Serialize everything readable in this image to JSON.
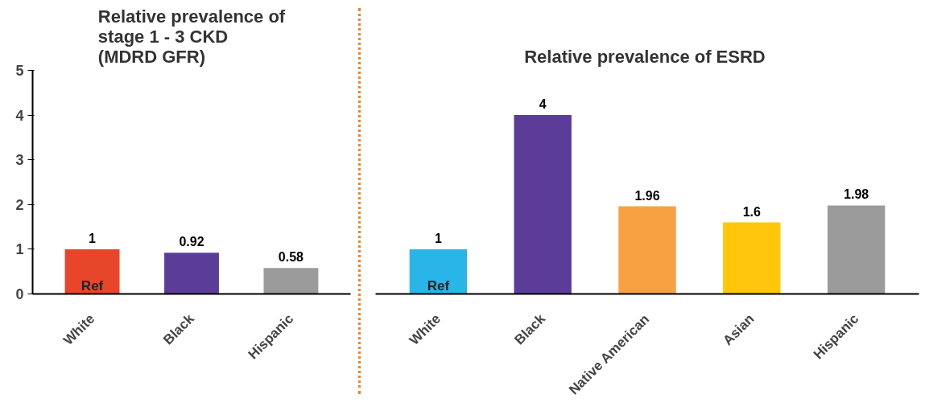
{
  "chart_data": [
    {
      "type": "bar",
      "title": "Relative prevalence of\nstage 1 - 3 CKD\n(MDRD GFR)",
      "categories": [
        "White",
        "Black",
        "Hispanic"
      ],
      "values": [
        1,
        0.92,
        0.58
      ],
      "colors": [
        "#e8462a",
        "#5b3d99",
        "#9b9b9b"
      ],
      "ylim": [
        0,
        5
      ],
      "yticks": [
        0,
        1,
        2,
        3,
        4,
        5
      ],
      "data_labels": true,
      "annotations": [
        {
          "text": "Ref",
          "x": "White",
          "y": 0
        }
      ]
    },
    {
      "type": "bar",
      "title": "Relative prevalence of  ESRD",
      "categories": [
        "White",
        "Black",
        "Native American",
        "Asian",
        "Hispanic"
      ],
      "values": [
        1,
        4,
        1.96,
        1.6,
        1.98
      ],
      "colors": [
        "#29b5e8",
        "#5b3d99",
        "#f7a143",
        "#ffc60b",
        "#9b9b9b"
      ],
      "ylim": [
        0,
        5
      ],
      "yticks": [
        0,
        1,
        2,
        3,
        4,
        5
      ],
      "tick_labels": "x",
      "data_labels": true,
      "annotations": [
        {
          "text": "Ref",
          "x": "White",
          "y": 0
        }
      ]
    }
  ]
}
